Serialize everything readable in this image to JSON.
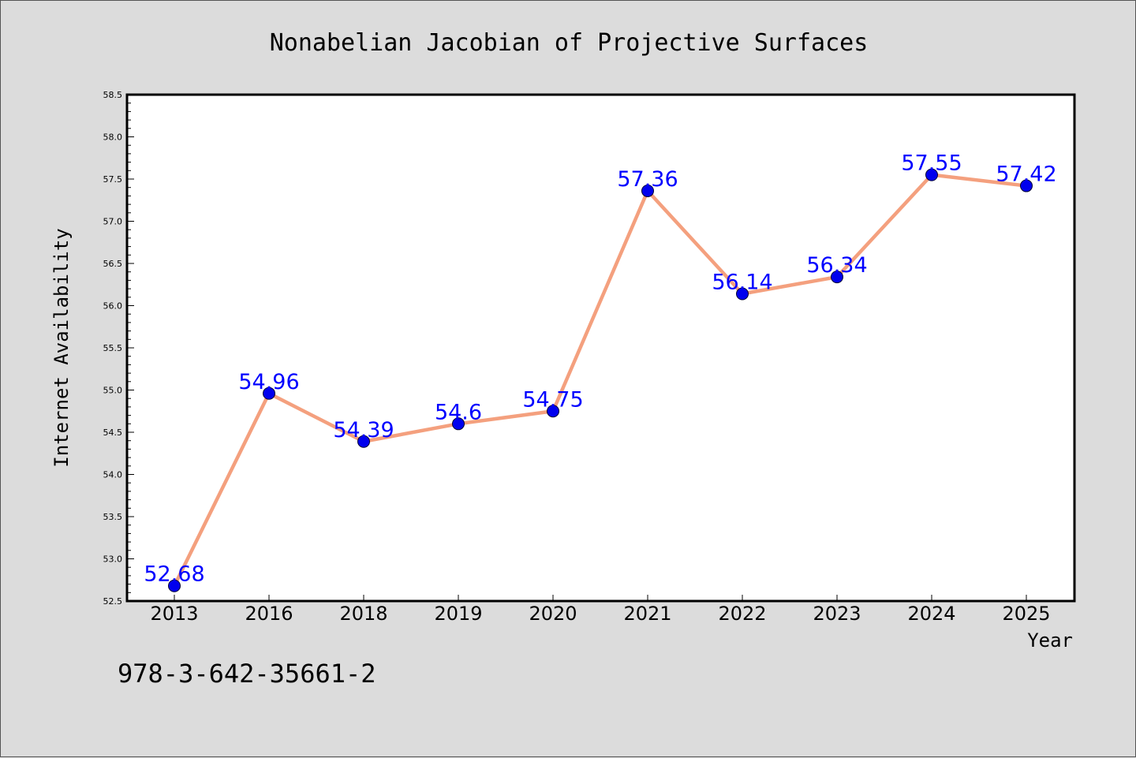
{
  "figure": {
    "title": "Nonabelian Jacobian of Projective Surfaces",
    "note": "978-3-642-35661-2"
  },
  "chart_data": {
    "type": "line",
    "title": "Nonabelian Jacobian of Projective Surfaces",
    "xlabel": "Year",
    "ylabel": "Internet Availability",
    "categories": [
      "2013",
      "2016",
      "2018",
      "2019",
      "2020",
      "2021",
      "2022",
      "2023",
      "2024",
      "2025"
    ],
    "values": [
      52.68,
      54.96,
      54.39,
      54.6,
      54.75,
      57.36,
      56.14,
      56.34,
      57.55,
      57.42
    ],
    "data_labels": [
      "52.68",
      "54.96",
      "54.39",
      "54.6",
      "54.75",
      "57.36",
      "56.14",
      "56.34",
      "57.55",
      "57.42"
    ],
    "ylim": [
      52.5,
      58.5
    ],
    "yticks": [
      "52.5",
      "53.0",
      "53.5",
      "54.0",
      "54.5",
      "55.0",
      "55.5",
      "56.0",
      "56.5",
      "57.0",
      "57.5",
      "58.0",
      "58.5"
    ],
    "grid": false,
    "legend": "none",
    "line_color": "#f4a07e",
    "marker_color": "#0000ee",
    "label_color": "#0000ff"
  }
}
